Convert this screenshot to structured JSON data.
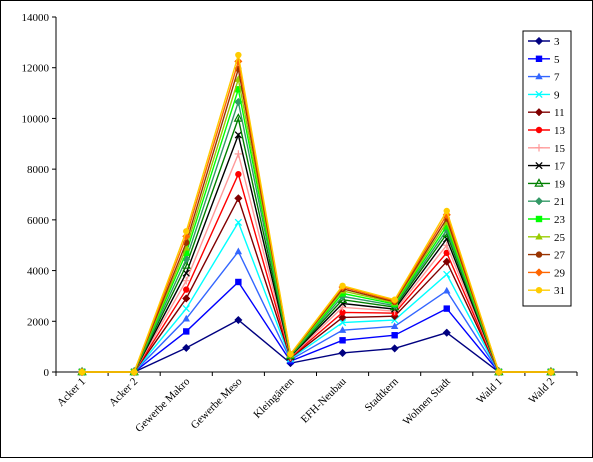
{
  "chart_data": {
    "type": "line",
    "title": "",
    "xlabel": "",
    "ylabel": "",
    "ylim": [
      0,
      14000
    ],
    "yticks": [
      0,
      2000,
      4000,
      6000,
      8000,
      10000,
      12000,
      14000
    ],
    "grid": false,
    "legend_position": "right",
    "categories": [
      "Acker 1",
      "Acker 2",
      "Gewerbe Makro",
      "Gewerbe Meso",
      "Kleingärten",
      "EFH-Neubau",
      "Stadtkern",
      "Wohnen Stadt",
      "Wald 1",
      "Wald 2"
    ],
    "series": [
      {
        "name": "3",
        "color": "#000080",
        "marker": "diamond",
        "values": [
          0,
          0,
          950,
          2050,
          350,
          750,
          930,
          1550,
          0,
          0
        ]
      },
      {
        "name": "5",
        "color": "#0000FF",
        "marker": "square",
        "values": [
          0,
          0,
          1600,
          3550,
          430,
          1250,
          1450,
          2500,
          0,
          0
        ]
      },
      {
        "name": "7",
        "color": "#3366FF",
        "marker": "triangle",
        "values": [
          0,
          0,
          2100,
          4750,
          480,
          1650,
          1800,
          3200,
          0,
          0
        ]
      },
      {
        "name": "9",
        "color": "#00FFFF",
        "marker": "x",
        "values": [
          0,
          0,
          2500,
          5900,
          520,
          1950,
          2050,
          3850,
          0,
          0
        ]
      },
      {
        "name": "11",
        "color": "#800000",
        "marker": "diamond",
        "values": [
          0,
          0,
          2900,
          6850,
          550,
          2150,
          2200,
          4350,
          0,
          0
        ]
      },
      {
        "name": "13",
        "color": "#FF0000",
        "marker": "circle",
        "values": [
          0,
          0,
          3250,
          7800,
          570,
          2350,
          2320,
          4700,
          0,
          0
        ]
      },
      {
        "name": "15",
        "color": "#FF9999",
        "marker": "plus",
        "values": [
          0,
          0,
          3600,
          8600,
          590,
          2550,
          2400,
          5000,
          0,
          0
        ]
      },
      {
        "name": "17",
        "color": "#000000",
        "marker": "x",
        "values": [
          0,
          0,
          3900,
          9350,
          610,
          2700,
          2480,
          5250,
          0,
          0
        ]
      },
      {
        "name": "19",
        "color": "#008000",
        "marker": "triangle-open",
        "values": [
          0,
          0,
          4200,
          10000,
          630,
          2850,
          2560,
          5450,
          0,
          0
        ]
      },
      {
        "name": "21",
        "color": "#339966",
        "marker": "diamond",
        "values": [
          0,
          0,
          4450,
          10650,
          650,
          2980,
          2620,
          5600,
          0,
          0
        ]
      },
      {
        "name": "23",
        "color": "#00FF00",
        "marker": "square",
        "values": [
          0,
          0,
          4700,
          11150,
          670,
          3100,
          2680,
          5750,
          0,
          0
        ]
      },
      {
        "name": "25",
        "color": "#99CC00",
        "marker": "triangle",
        "values": [
          0,
          0,
          4900,
          11550,
          680,
          3200,
          2730,
          5900,
          0,
          0
        ]
      },
      {
        "name": "27",
        "color": "#993300",
        "marker": "circle",
        "values": [
          0,
          0,
          5100,
          11950,
          690,
          3280,
          2770,
          6050,
          0,
          0
        ]
      },
      {
        "name": "29",
        "color": "#FF6600",
        "marker": "diamond",
        "values": [
          0,
          0,
          5350,
          12250,
          700,
          3350,
          2810,
          6200,
          0,
          0
        ]
      },
      {
        "name": "31",
        "color": "#FFCC00",
        "marker": "circle",
        "values": [
          0,
          0,
          5550,
          12500,
          710,
          3400,
          2850,
          6350,
          0,
          0
        ]
      }
    ]
  }
}
